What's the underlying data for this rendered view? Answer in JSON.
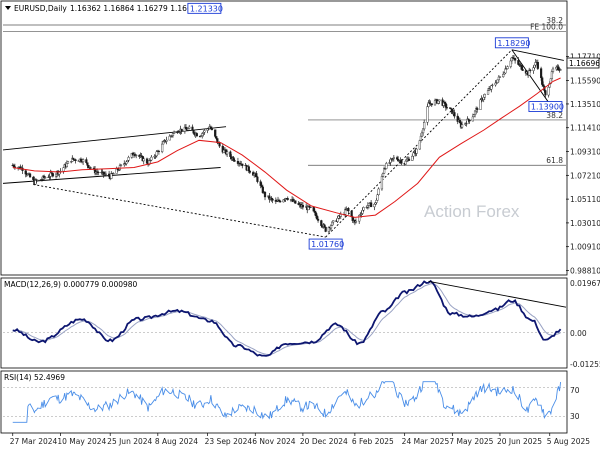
{
  "header": {
    "symbol": "EURUSD,Daily",
    "ohlc": "1.16362 1.16864 1.16279 1.16696"
  },
  "watermark": "Action Forex",
  "colors": {
    "candle": "#1a1a1a",
    "sma": "#e01818",
    "macd": "#0d1670",
    "signal": "#9aa3c4",
    "rsi": "#4a8ee8",
    "fib_line": "#555555",
    "trendline": "#000000",
    "callout": "#1a3bd6"
  },
  "price_panel": {
    "fib_labels": [
      {
        "text": "38.2",
        "price": 1.2048
      },
      {
        "text": "FE 100.0",
        "price": 1.199
      },
      {
        "text": "38.2",
        "price": 1.121
      },
      {
        "text": "61.8",
        "price": 1.081
      }
    ],
    "current_price": "1.16696",
    "callouts": [
      {
        "text": "1.21330",
        "date": "2024-09-20",
        "price": 1.2133
      },
      {
        "text": "1.01760",
        "date": "2025-01-10",
        "price": 1.0176
      },
      {
        "text": "1.18290",
        "date": "2025-07-01",
        "price": 1.1829
      },
      {
        "text": "1.13900",
        "date": "2025-08-01",
        "price": 1.139
      }
    ]
  },
  "macd_panel": {
    "label": "MACD(12,26,9) 0.000779 0.000980",
    "y_ticks": [
      "0.019679",
      "0.00",
      "-0.012552"
    ]
  },
  "rsi_panel": {
    "label": "RSI(14) 52.4969",
    "y_ticks": [
      "70",
      "30"
    ]
  },
  "chart_data": {
    "type": "line",
    "title": "EURUSD,Daily 1.16362 1.16864 1.16279 1.16696",
    "x_tick_labels": [
      "27 Mar 2024",
      "10 May 2024",
      "25 Jun 2024",
      "8 Aug 2024",
      "23 Sep 2024",
      "6 Nov 2024",
      "20 Dec 2024",
      "6 Feb 2025",
      "24 Mar 2025",
      "7 May 2025",
      "20 Jun 2025",
      "5 Aug 2025"
    ],
    "y_tick_labels": [
      "1.17710",
      "1.15590",
      "1.13510",
      "1.11410",
      "1.09310",
      "1.07210",
      "1.05110",
      "1.03010",
      "1.00910",
      "0.98810"
    ],
    "ylim": [
      0.985,
      1.2145
    ],
    "grid": false,
    "series": [
      {
        "values_type": "close",
        "x": [
          "2024-03-27",
          "2024-04-05",
          "2024-04-16",
          "2024-04-25",
          "2024-05-10",
          "2024-05-20",
          "2024-05-30",
          "2024-06-10",
          "2024-06-25",
          "2024-07-05",
          "2024-07-17",
          "2024-07-30",
          "2024-08-08",
          "2024-08-15",
          "2024-08-26",
          "2024-09-06",
          "2024-09-15",
          "2024-09-25",
          "2024-10-05",
          "2024-10-15",
          "2024-10-25",
          "2024-11-06",
          "2024-11-15",
          "2024-11-25",
          "2024-12-05",
          "2024-12-15",
          "2024-12-28",
          "2025-01-10",
          "2025-01-20",
          "2025-01-30",
          "2025-02-06",
          "2025-02-15",
          "2025-02-25",
          "2025-03-05",
          "2025-03-15",
          "2025-03-24",
          "2025-04-05",
          "2025-04-15",
          "2025-04-25",
          "2025-05-07",
          "2025-05-15",
          "2025-05-25",
          "2025-06-05",
          "2025-06-15",
          "2025-06-22",
          "2025-07-01",
          "2025-07-08",
          "2025-07-16",
          "2025-07-24",
          "2025-08-01",
          "2025-08-08",
          "2025-08-15"
        ],
        "values": [
          1.081,
          1.078,
          1.066,
          1.07,
          1.076,
          1.086,
          1.086,
          1.076,
          1.071,
          1.08,
          1.092,
          1.083,
          1.093,
          1.103,
          1.112,
          1.113,
          1.107,
          1.115,
          1.096,
          1.088,
          1.082,
          1.072,
          1.054,
          1.048,
          1.053,
          1.046,
          1.042,
          1.024,
          1.033,
          1.042,
          1.03,
          1.045,
          1.047,
          1.079,
          1.088,
          1.083,
          1.095,
          1.135,
          1.138,
          1.128,
          1.116,
          1.123,
          1.142,
          1.153,
          1.161,
          1.176,
          1.169,
          1.162,
          1.172,
          1.142,
          1.165,
          1.167
        ]
      },
      {
        "name": "SMA",
        "x": [
          "2024-03-27",
          "2024-04-16",
          "2024-05-10",
          "2024-05-30",
          "2024-06-25",
          "2024-07-17",
          "2024-08-08",
          "2024-08-26",
          "2024-09-15",
          "2024-10-05",
          "2024-10-25",
          "2024-11-15",
          "2024-12-05",
          "2024-12-28",
          "2025-01-20",
          "2025-02-06",
          "2025-02-25",
          "2025-03-15",
          "2025-04-05",
          "2025-04-25",
          "2025-05-15",
          "2025-06-05",
          "2025-06-22",
          "2025-07-08",
          "2025-07-24",
          "2025-08-08",
          "2025-08-15"
        ],
        "values": [
          1.079,
          1.076,
          1.075,
          1.077,
          1.078,
          1.079,
          1.084,
          1.094,
          1.103,
          1.101,
          1.09,
          1.075,
          1.059,
          1.045,
          1.039,
          1.035,
          1.037,
          1.049,
          1.065,
          1.088,
          1.1,
          1.112,
          1.123,
          1.133,
          1.144,
          1.155,
          1.158
        ]
      }
    ],
    "fibonacci_levels": [
      {
        "label": "38.2",
        "value": 1.2048
      },
      {
        "label": "FE 100.0",
        "value": 1.199
      },
      {
        "label": "38.2",
        "value": 1.121
      },
      {
        "label": "61.8",
        "value": 1.081
      }
    ],
    "annotations": [
      "1.21330",
      "1.01760",
      "1.18290",
      "1.13900"
    ],
    "macd": {
      "label": "MACD(12,26,9) 0.000779 0.000980",
      "ylim": [
        -0.012552,
        0.019679
      ],
      "x": [
        "2024-03-27",
        "2024-04-20",
        "2024-05-30",
        "2024-06-25",
        "2024-07-20",
        "2024-08-26",
        "2024-09-25",
        "2024-10-20",
        "2024-11-15",
        "2024-12-05",
        "2024-12-28",
        "2025-01-20",
        "2025-02-10",
        "2025-03-05",
        "2025-03-24",
        "2025-04-15",
        "2025-05-07",
        "2025-05-25",
        "2025-06-15",
        "2025-07-01",
        "2025-07-20",
        "2025-08-01",
        "2025-08-15"
      ],
      "values": [
        0.001,
        -0.0035,
        0.005,
        -0.003,
        0.005,
        0.008,
        0.0045,
        -0.005,
        -0.009,
        -0.004,
        -0.0035,
        0.003,
        -0.004,
        0.008,
        0.015,
        0.0192,
        0.007,
        0.006,
        0.0085,
        0.012,
        0.0045,
        -0.003,
        0.0008
      ]
    },
    "rsi": {
      "label": "RSI(14) 52.4969",
      "ylim": [
        10,
        90
      ],
      "levels": [
        70,
        30
      ],
      "values_summary": "oscillating mostly between 30 and 75"
    }
  }
}
